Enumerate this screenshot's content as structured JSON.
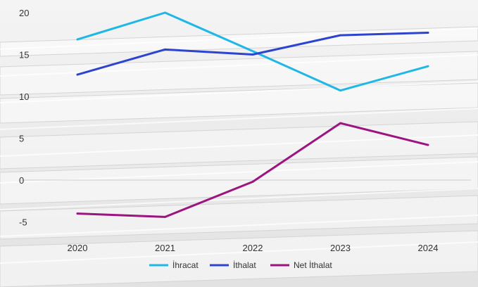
{
  "chart_data": {
    "type": "line",
    "categories": [
      "2020",
      "2021",
      "2022",
      "2023",
      "2024"
    ],
    "y_ticks": [
      "20",
      "15",
      "10",
      "5",
      "0",
      "-5"
    ],
    "ylim": [
      -7.5,
      21
    ],
    "grid": false,
    "legend_position": "bottom-center",
    "series": [
      {
        "name": "İhracat",
        "color": "#1EB7E6",
        "values": [
          16.8,
          20.0,
          15.4,
          10.7,
          13.6
        ]
      },
      {
        "name": "İthalat",
        "color": "#2D44CF",
        "values": [
          12.6,
          15.6,
          15.0,
          17.3,
          17.6
        ]
      },
      {
        "name": "Net İthalat",
        "color": "#9B1480",
        "values": [
          -4.0,
          -4.4,
          -0.2,
          6.8,
          4.2
        ]
      }
    ]
  }
}
